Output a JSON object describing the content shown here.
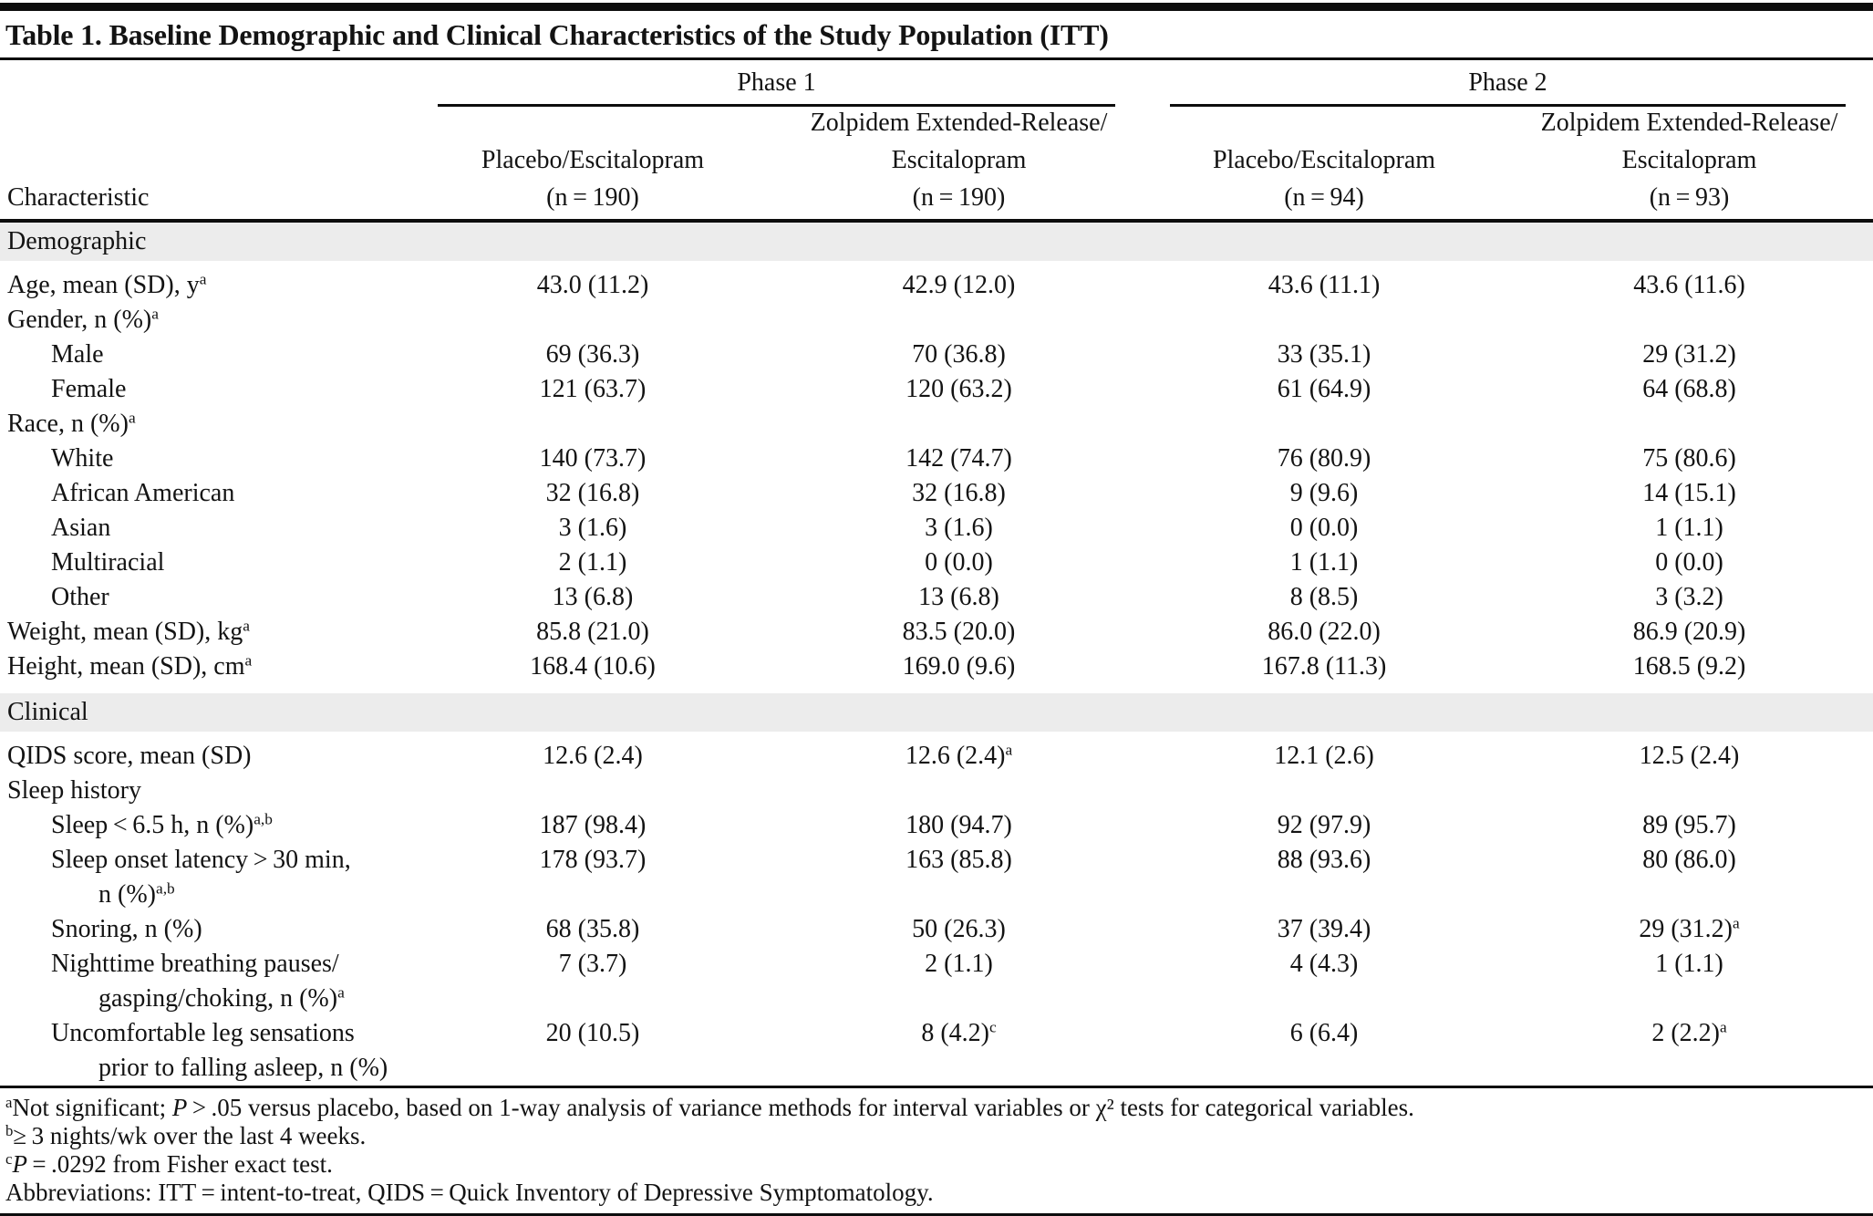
{
  "table": {
    "title": "Table 1. Baseline Demographic and Clinical Characteristics of the Study Population (ITT)",
    "char_col_header": "Characteristic",
    "groups": [
      {
        "label": "Phase 1",
        "columns": [
          [
            "Placebo/Escitalopram",
            "(n = 190)"
          ],
          [
            "Zolpidem Extended-Release/",
            "Escitalopram",
            "(n = 190)"
          ]
        ]
      },
      {
        "label": "Phase 2",
        "columns": [
          [
            "Placebo/Escitalopram",
            "(n = 94)"
          ],
          [
            "Zolpidem Extended-Release/",
            "Escitalopram",
            "(n = 93)"
          ]
        ]
      }
    ],
    "rows": [
      {
        "type": "section",
        "label": "Demographic"
      },
      {
        "label": "Age, mean (SD), y",
        "sup": "a",
        "indent": 0,
        "cells": [
          "43.0 (11.2)",
          "42.9 (12.0)",
          "43.6 (11.1)",
          "43.6 (11.6)"
        ]
      },
      {
        "label": "Gender, n (%)",
        "sup": "a",
        "indent": 0,
        "cells": [
          "",
          "",
          "",
          ""
        ]
      },
      {
        "label": "Male",
        "indent": 1,
        "cells": [
          "69 (36.3)",
          "70 (36.8)",
          "33 (35.1)",
          "29 (31.2)"
        ]
      },
      {
        "label": "Female",
        "indent": 1,
        "cells": [
          "121 (63.7)",
          "120 (63.2)",
          "61 (64.9)",
          "64 (68.8)"
        ]
      },
      {
        "label": "Race, n (%)",
        "sup": "a",
        "indent": 0,
        "cells": [
          "",
          "",
          "",
          ""
        ]
      },
      {
        "label": "White",
        "indent": 1,
        "cells": [
          "140 (73.7)",
          "142 (74.7)",
          "76 (80.9)",
          "75 (80.6)"
        ]
      },
      {
        "label": "African American",
        "indent": 1,
        "cells": [
          "32 (16.8)",
          "32 (16.8)",
          "9 (9.6)",
          "14 (15.1)"
        ]
      },
      {
        "label": "Asian",
        "indent": 1,
        "cells": [
          "3 (1.6)",
          "3 (1.6)",
          "0 (0.0)",
          "1 (1.1)"
        ]
      },
      {
        "label": "Multiracial",
        "indent": 1,
        "cells": [
          "2 (1.1)",
          "0 (0.0)",
          "1 (1.1)",
          "0 (0.0)"
        ]
      },
      {
        "label": "Other",
        "indent": 1,
        "cells": [
          "13 (6.8)",
          "13 (6.8)",
          "8 (8.5)",
          "3 (3.2)"
        ]
      },
      {
        "label": "Weight, mean (SD), kg",
        "sup": "a",
        "indent": 0,
        "cells": [
          "85.8 (21.0)",
          "83.5 (20.0)",
          "86.0 (22.0)",
          "86.9 (20.9)"
        ]
      },
      {
        "label": "Height, mean (SD), cm",
        "sup": "a",
        "indent": 0,
        "cells": [
          "168.4 (10.6)",
          "169.0 (9.6)",
          "167.8 (11.3)",
          "168.5 (9.2)"
        ]
      },
      {
        "type": "section",
        "label": "Clinical"
      },
      {
        "label": "QIDS score, mean (SD)",
        "indent": 0,
        "cells": [
          "12.6 (2.4)",
          {
            "t": "12.6 (2.4)",
            "sup": "a"
          },
          "12.1 (2.6)",
          "12.5 (2.4)"
        ]
      },
      {
        "label": "Sleep history",
        "indent": 0,
        "cells": [
          "",
          "",
          "",
          ""
        ]
      },
      {
        "label": "Sleep < 6.5 h, n (%)",
        "sup": "a,b",
        "indent": 1,
        "cells": [
          "187 (98.4)",
          "180 (94.7)",
          "92 (97.9)",
          "89 (95.7)"
        ]
      },
      {
        "label": "Sleep onset latency > 30 min,",
        "indent": 1,
        "label2": "n (%)",
        "label2_sup": "a,b",
        "cells": [
          "178 (93.7)",
          "163 (85.8)",
          "88 (93.6)",
          "80 (86.0)"
        ]
      },
      {
        "label": "Snoring, n (%)",
        "indent": 1,
        "cells": [
          "68 (35.8)",
          "50 (26.3)",
          "37 (39.4)",
          {
            "t": "29 (31.2)",
            "sup": "a"
          }
        ]
      },
      {
        "label": "Nighttime breathing pauses/",
        "indent": 1,
        "label2": "gasping/choking, n (%)",
        "label2_sup": "a",
        "cells": [
          "7 (3.7)",
          "2 (1.1)",
          "4 (4.3)",
          "1 (1.1)"
        ]
      },
      {
        "label": "Uncomfortable leg sensations",
        "indent": 1,
        "label2": "prior to falling asleep, n (%)",
        "cells": [
          "20 (10.5)",
          {
            "t": "8 (4.2)",
            "sup": "c"
          },
          "6 (6.4)",
          {
            "t": "2 (2.2)",
            "sup": "a"
          }
        ]
      }
    ],
    "footnotes": [
      {
        "marker": "a",
        "parts": [
          {
            "t": "Not significant; "
          },
          {
            "i": "P"
          },
          {
            "t": " > .05 versus placebo, based on 1-way analysis of variance methods for interval variables or χ² tests for categorical variables."
          }
        ]
      },
      {
        "marker": "b",
        "parts": [
          {
            "t": "≥ 3 nights/wk over the last 4 weeks."
          }
        ]
      },
      {
        "marker": "c",
        "parts": [
          {
            "i": "P"
          },
          {
            "t": " = .0292 from Fisher exact test."
          }
        ]
      },
      {
        "marker": "",
        "parts": [
          {
            "t": "Abbreviations: ITT = intent-to-treat, QIDS = Quick Inventory of Depressive Symptomatology."
          }
        ]
      }
    ],
    "colors": {
      "section_bg": "#ececec",
      "rule": "#0d0d0d",
      "text": "#131313"
    }
  }
}
